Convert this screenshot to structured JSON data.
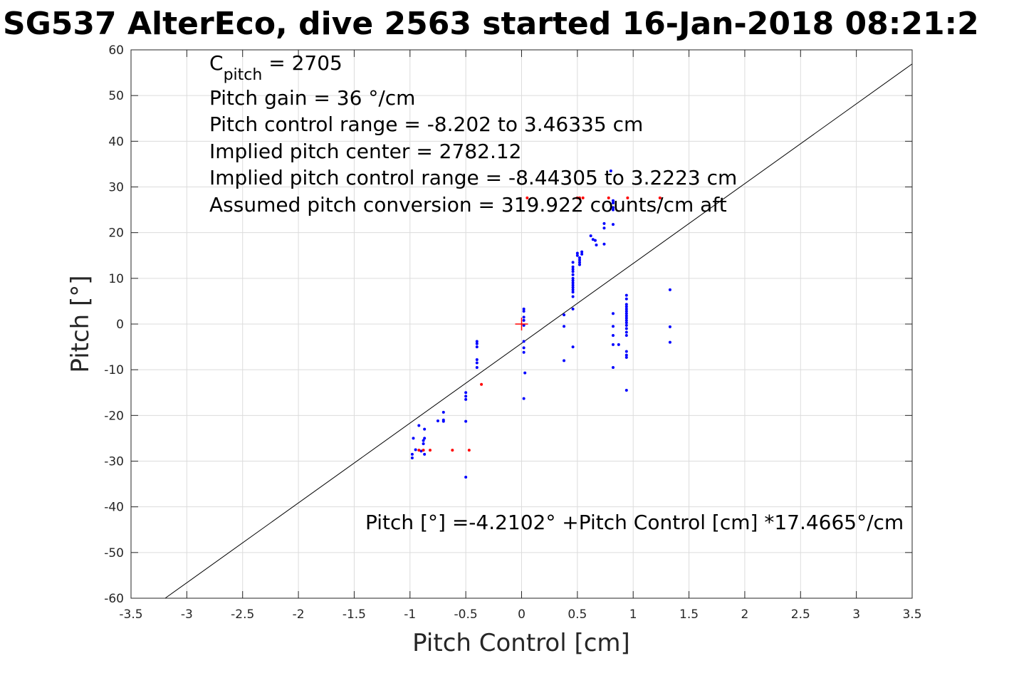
{
  "chart_data": {
    "type": "scatter",
    "title": "SG537 AlterEco, dive 2563 started 16-Jan-2018 08:21:2",
    "xlabel": "Pitch Control [cm]",
    "ylabel": "Pitch [°]",
    "xlim": [
      -3.5,
      3.5
    ],
    "ylim": [
      -60,
      60
    ],
    "grid": true,
    "x_ticks": [
      -3.5,
      -3,
      -2.5,
      -2,
      -1.5,
      -1,
      -0.5,
      0,
      0.5,
      1,
      1.5,
      2,
      2.5,
      3,
      3.5
    ],
    "x_tick_labels": [
      "-3.5",
      "-3",
      "-2.5",
      "-2",
      "-1.5",
      "-1",
      "-0.5",
      "0",
      "0.5",
      "1",
      "1.5",
      "2",
      "2.5",
      "3",
      "3.5"
    ],
    "y_ticks": [
      60,
      50,
      40,
      30,
      20,
      10,
      0,
      -10,
      -20,
      -30,
      -40,
      -50,
      -60
    ],
    "y_tick_labels": [
      "60",
      "50",
      "40",
      "30",
      "20",
      "10",
      "0",
      "-10",
      "-20",
      "-30",
      "-40",
      "-50",
      "-60"
    ],
    "annotations": {
      "c_pitch_main": "C",
      "c_pitch_sub": "pitch",
      "c_pitch_value": " = 2705",
      "lines": [
        "Pitch gain = 36 °/cm",
        "Pitch control range = -8.202 to 3.46335 cm",
        "Implied pitch center = 2782.12",
        "Implied pitch control range = -8.44305 to 3.2223 cm",
        "Assumed pitch conversion = 319.922 counts/cm aft"
      ],
      "fit_equation": "Pitch [°] =-4.2102° +Pitch Control [cm] *17.4665°/cm"
    },
    "fit_line": {
      "intercept": -4.2102,
      "slope": 17.4665,
      "color": "#000000"
    },
    "center_marker": {
      "x": 0,
      "y": 0,
      "color": "#ff0000"
    },
    "series": [
      {
        "color": "#0000ff",
        "points": [
          [
            -0.98,
            -29.3
          ],
          [
            -0.98,
            -28.5
          ],
          [
            -0.97,
            -25
          ],
          [
            -0.95,
            -27.5
          ],
          [
            -0.92,
            -22.2
          ],
          [
            -0.9,
            -27.8
          ],
          [
            -0.88,
            -25.5
          ],
          [
            -0.88,
            -26.2
          ],
          [
            -0.87,
            -25
          ],
          [
            -0.87,
            -23
          ],
          [
            -0.87,
            -28.5
          ],
          [
            -0.75,
            -21.2
          ],
          [
            -0.7,
            -21
          ],
          [
            -0.7,
            -21.3
          ],
          [
            -0.7,
            -19.3
          ],
          [
            -0.5,
            -15
          ],
          [
            -0.5,
            -15.8
          ],
          [
            -0.5,
            -16.5
          ],
          [
            -0.5,
            -21.3
          ],
          [
            -0.5,
            -33.5
          ],
          [
            -0.4,
            -3.8
          ],
          [
            -0.4,
            -4.3
          ],
          [
            -0.4,
            -5
          ],
          [
            -0.4,
            -7.8
          ],
          [
            -0.4,
            -8.5
          ],
          [
            -0.4,
            -9.5
          ],
          [
            0.02,
            3.3
          ],
          [
            0.02,
            2.8
          ],
          [
            0.02,
            1.5
          ],
          [
            0.02,
            0.8
          ],
          [
            0.02,
            -0.3
          ],
          [
            0.02,
            -3.8
          ],
          [
            0.02,
            -5.2
          ],
          [
            0.02,
            -6.2
          ],
          [
            0.03,
            -10.7
          ],
          [
            0.02,
            -16.3
          ],
          [
            0.38,
            2
          ],
          [
            0.38,
            -0.5
          ],
          [
            0.38,
            -8
          ],
          [
            0.46,
            13.5
          ],
          [
            0.46,
            12.5
          ],
          [
            0.46,
            12
          ],
          [
            0.46,
            11.5
          ],
          [
            0.46,
            10.8
          ],
          [
            0.46,
            10
          ],
          [
            0.46,
            9.5
          ],
          [
            0.46,
            9
          ],
          [
            0.46,
            8.5
          ],
          [
            0.46,
            8
          ],
          [
            0.46,
            7.5
          ],
          [
            0.46,
            7
          ],
          [
            0.46,
            6
          ],
          [
            0.46,
            3.3
          ],
          [
            0.46,
            -5
          ],
          [
            0.5,
            15.5
          ],
          [
            0.5,
            15
          ],
          [
            0.52,
            14.5
          ],
          [
            0.52,
            14
          ],
          [
            0.52,
            13.5
          ],
          [
            0.52,
            13
          ],
          [
            0.54,
            15.8
          ],
          [
            0.54,
            15.3
          ],
          [
            0.62,
            19.3
          ],
          [
            0.64,
            18.5
          ],
          [
            0.66,
            18.3
          ],
          [
            0.67,
            17.3
          ],
          [
            0.74,
            22
          ],
          [
            0.74,
            21
          ],
          [
            0.74,
            17.5
          ],
          [
            0.8,
            33.5
          ],
          [
            0.82,
            27
          ],
          [
            0.82,
            26.5
          ],
          [
            0.82,
            25.5
          ],
          [
            0.82,
            25
          ],
          [
            0.82,
            21.8
          ],
          [
            0.82,
            2.3
          ],
          [
            0.82,
            -0.5
          ],
          [
            0.82,
            -2.5
          ],
          [
            0.82,
            -4.5
          ],
          [
            0.82,
            -9.5
          ],
          [
            0.87,
            -4.5
          ],
          [
            0.94,
            6.3
          ],
          [
            0.94,
            5.5
          ],
          [
            0.94,
            4.3
          ],
          [
            0.94,
            3.8
          ],
          [
            0.94,
            3.3
          ],
          [
            0.94,
            2.8
          ],
          [
            0.94,
            2.3
          ],
          [
            0.94,
            1.8
          ],
          [
            0.94,
            1.3
          ],
          [
            0.94,
            0.8
          ],
          [
            0.94,
            0.3
          ],
          [
            0.94,
            -0.3
          ],
          [
            0.94,
            -1
          ],
          [
            0.94,
            -1.8
          ],
          [
            0.94,
            -2.5
          ],
          [
            0.94,
            -6
          ],
          [
            0.94,
            -6.8
          ],
          [
            0.94,
            -7.3
          ],
          [
            0.94,
            -14.5
          ],
          [
            1.33,
            7.5
          ],
          [
            1.33,
            -0.6
          ],
          [
            1.33,
            -4
          ]
        ]
      },
      {
        "color": "#ff0000",
        "points": [
          [
            -0.92,
            -27.6
          ],
          [
            -0.88,
            -27.6
          ],
          [
            -0.82,
            -27.6
          ],
          [
            -0.62,
            -27.6
          ],
          [
            -0.47,
            -27.6
          ],
          [
            -0.36,
            -13.2
          ],
          [
            0.05,
            27.6
          ],
          [
            0.5,
            27.6
          ],
          [
            0.52,
            27.6
          ],
          [
            0.55,
            27.6
          ],
          [
            0.78,
            27.6
          ],
          [
            0.95,
            27.6
          ],
          [
            1.24,
            27.6
          ]
        ]
      }
    ]
  }
}
